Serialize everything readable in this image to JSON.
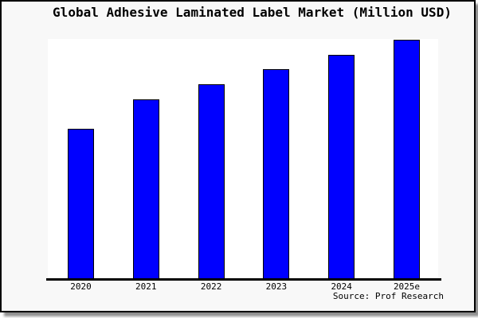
{
  "title": "Global Adhesive Laminated Label Market (Million USD)",
  "source": "Source: Prof Research",
  "colors": {
    "card_background": "#f8f8f8",
    "plot_background": "#ffffff",
    "bar_fill": "#0000ff",
    "bar_border": "#000000",
    "axis": "#000000",
    "text": "#000000",
    "card_border": "#000000",
    "shadow": "#8f8f8f"
  },
  "chart_data": {
    "type": "bar",
    "title": "Global Adhesive Laminated Label Market (Million USD)",
    "unit": "Million USD",
    "categories": [
      "2020",
      "2021",
      "2022",
      "2023",
      "2024",
      "2025e"
    ],
    "values_pct_of_plot_height": [
      62.6,
      74.8,
      81.1,
      87.4,
      93.4,
      99.7
    ],
    "xlabel": "",
    "ylabel": "",
    "y_axis_shown": false,
    "gridlines": false,
    "legend": false,
    "source_label": "Source: Prof Research"
  }
}
